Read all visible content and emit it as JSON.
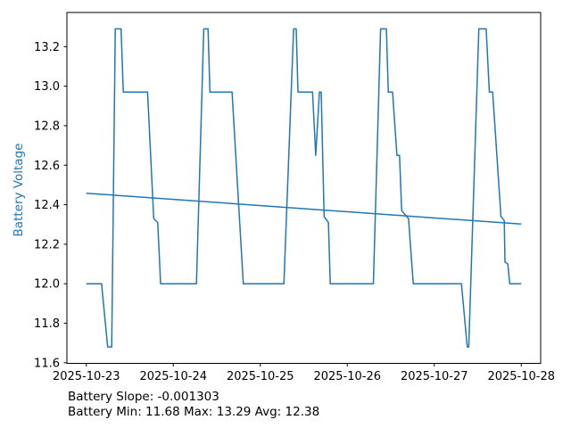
{
  "chart_data": {
    "type": "line",
    "title": "",
    "xlabel": "",
    "ylabel": "Battery Voltage",
    "x_unit": "hours since 2025-10-23 00:00",
    "xlim_hours": [
      -5.35,
      125.35
    ],
    "ylim": [
      11.597,
      13.373
    ],
    "x_ticks_hours": [
      0,
      24,
      48,
      72,
      96,
      120
    ],
    "x_tick_labels": [
      "2025-10-23",
      "2025-10-24",
      "2025-10-25",
      "2025-10-26",
      "2025-10-27",
      "2025-10-28"
    ],
    "y_ticks": [
      11.6,
      11.8,
      12.0,
      12.2,
      12.4,
      12.6,
      12.8,
      13.0,
      13.2
    ],
    "grid": false,
    "legend": "none",
    "line_color": "#1f77b4",
    "ylabel_color": "#1f77b4",
    "axis_color": "#000000",
    "series": [
      {
        "name": "battery_voltage",
        "points": [
          [
            0.0,
            12.0
          ],
          [
            4.2,
            12.0
          ],
          [
            5.9,
            11.68
          ],
          [
            7.0,
            11.68
          ],
          [
            8.0,
            13.29
          ],
          [
            9.6,
            13.29
          ],
          [
            10.2,
            12.97
          ],
          [
            16.9,
            12.97
          ],
          [
            18.6,
            12.33
          ],
          [
            19.7,
            12.31
          ],
          [
            20.5,
            12.0
          ],
          [
            30.4,
            12.0
          ],
          [
            32.4,
            13.29
          ],
          [
            33.6,
            13.29
          ],
          [
            34.1,
            12.97
          ],
          [
            40.2,
            12.97
          ],
          [
            43.3,
            12.0
          ],
          [
            54.5,
            12.0
          ],
          [
            57.2,
            13.29
          ],
          [
            57.9,
            13.29
          ],
          [
            58.4,
            12.97
          ],
          [
            62.4,
            12.97
          ],
          [
            63.3,
            12.65
          ],
          [
            64.3,
            12.97
          ],
          [
            64.8,
            12.97
          ],
          [
            65.6,
            12.34
          ],
          [
            66.8,
            12.31
          ],
          [
            67.3,
            12.0
          ],
          [
            79.2,
            12.0
          ],
          [
            81.2,
            13.29
          ],
          [
            82.8,
            13.29
          ],
          [
            83.3,
            12.97
          ],
          [
            84.5,
            12.97
          ],
          [
            85.7,
            12.65
          ],
          [
            86.4,
            12.65
          ],
          [
            87.0,
            12.37
          ],
          [
            88.9,
            12.33
          ],
          [
            90.2,
            12.0
          ],
          [
            103.5,
            12.0
          ],
          [
            105.1,
            11.68
          ],
          [
            105.5,
            11.68
          ],
          [
            108.3,
            13.29
          ],
          [
            110.3,
            13.29
          ],
          [
            111.2,
            12.97
          ],
          [
            112.1,
            12.97
          ],
          [
            114.4,
            12.34
          ],
          [
            115.3,
            12.32
          ],
          [
            115.5,
            12.11
          ],
          [
            116.3,
            12.1
          ],
          [
            116.8,
            12.0
          ],
          [
            120.0,
            12.0
          ]
        ]
      },
      {
        "name": "battery_trend",
        "points": [
          [
            0.0,
            12.458
          ],
          [
            120.0,
            12.302
          ]
        ]
      }
    ],
    "stats": {
      "slope": -0.001303,
      "min": 11.68,
      "max": 13.29,
      "avg": 12.38
    }
  },
  "footer": {
    "slope_line": "Battery Slope: -0.001303",
    "stats_line": "Battery Min: 11.68 Max: 13.29 Avg: 12.38"
  }
}
